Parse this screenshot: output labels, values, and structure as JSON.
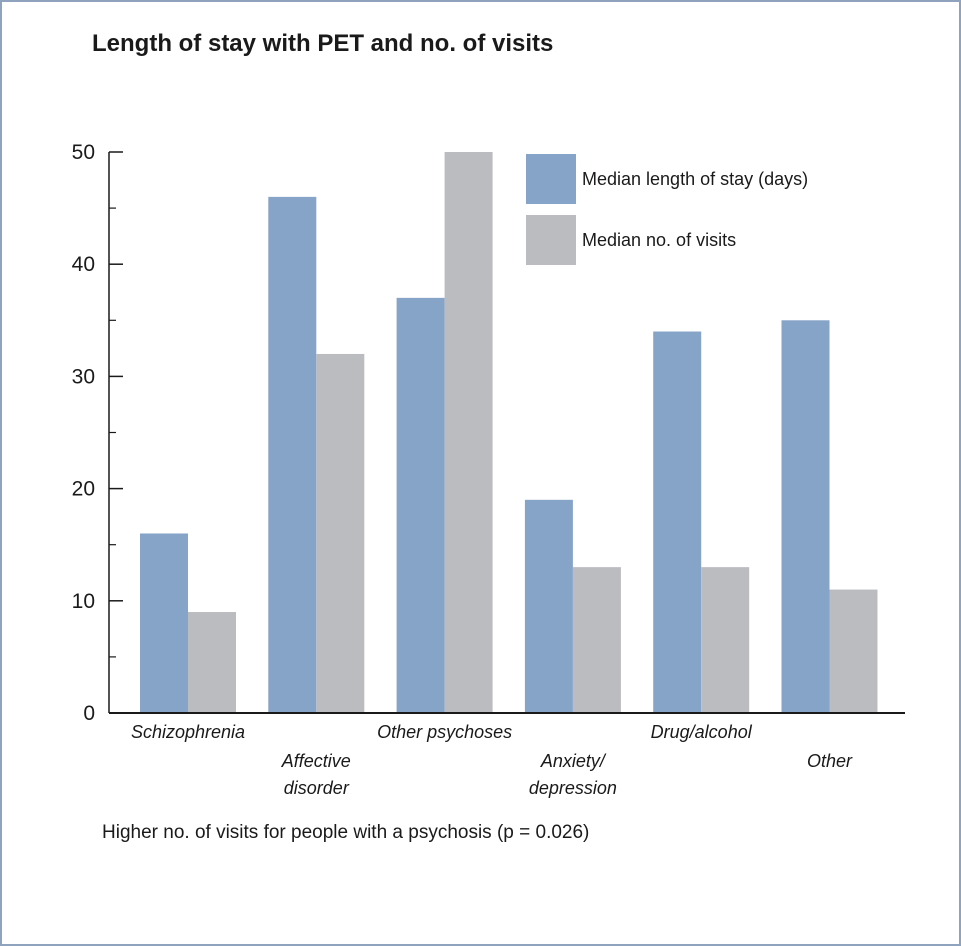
{
  "chart_data": {
    "type": "bar",
    "title": "Length of stay with PET and no. of visits",
    "categories": [
      [
        "Schizophrenia"
      ],
      [
        "Affective",
        "disorder"
      ],
      [
        "Other psychoses"
      ],
      [
        "Anxiety/",
        "depression"
      ],
      [
        "Drug/alcohol"
      ],
      [
        "Other"
      ]
    ],
    "series": [
      {
        "name": "Median length of stay (days)",
        "values": [
          16,
          46,
          37,
          19,
          34,
          35
        ],
        "color": "#86a3c8"
      },
      {
        "name": "Median no. of visits",
        "values": [
          9,
          32,
          50,
          13,
          13,
          11
        ],
        "color": "#bbbcc0"
      }
    ],
    "ylim": [
      0,
      50
    ],
    "yticks": [
      0,
      10,
      20,
      30,
      40,
      50
    ],
    "xlabel": "",
    "ylabel": "",
    "grid": false,
    "legend_position": "top-right",
    "footnote": "Higher no. of visits for people with a psychosis (p = 0.026)"
  },
  "frame_color": "#8fa3bf",
  "axis_color": "#1a1a1a"
}
